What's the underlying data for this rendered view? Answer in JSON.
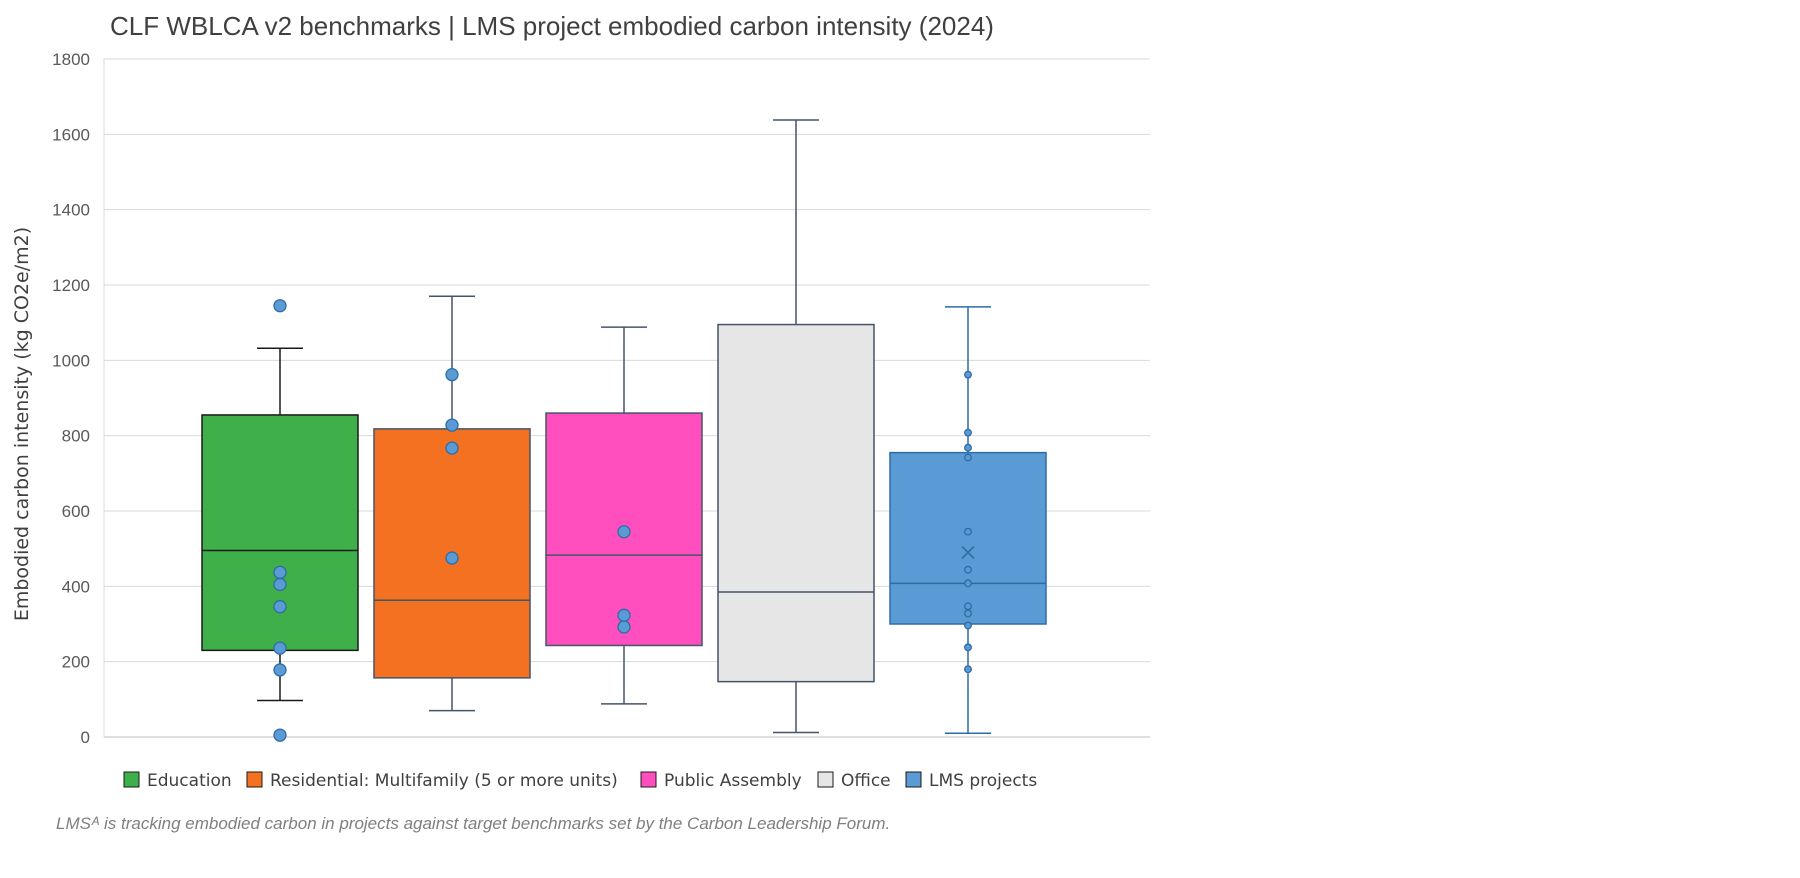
{
  "chart_data": {
    "type": "boxplot",
    "title": "CLF WBLCA v2 benchmarks | LMS project embodied carbon intensity (2024)",
    "ylabel": "Embodied carbon intensity (kg CO2e/m2)",
    "xlabel": "",
    "ylim": [
      0,
      1800
    ],
    "yticks": [
      0,
      200,
      400,
      600,
      800,
      1000,
      1200,
      1400,
      1600,
      1800
    ],
    "grid": true,
    "legend_position": "bottom",
    "caption": "LMSᴬ is tracking embodied carbon in projects against target benchmarks set by the Carbon Leadership Forum.",
    "series": [
      {
        "name": "Education",
        "color": "#3faf49",
        "stroke": "#1a1a1a",
        "whisker_low": 97,
        "q1": 230,
        "median": 495,
        "q3": 855,
        "whisker_high": 1032,
        "points": [
          1145,
          437,
          405,
          346,
          236,
          178,
          5
        ]
      },
      {
        "name": "Residential: Multifamily (5 or more units)",
        "color": "#f37121",
        "stroke": "#44546a",
        "whisker_low": 70,
        "q1": 157,
        "median": 363,
        "q3": 818,
        "whisker_high": 1170,
        "points": [
          962,
          828,
          767,
          475
        ]
      },
      {
        "name": "Public Assembly",
        "color": "#ff4fbe",
        "stroke": "#44546a",
        "whisker_low": 88,
        "q1": 243,
        "median": 483,
        "q3": 860,
        "whisker_high": 1088,
        "points": [
          545,
          323,
          292
        ]
      },
      {
        "name": "Office",
        "color": "#e7e6e6",
        "stroke": "#44546a",
        "whisker_low": 12,
        "q1": 147,
        "median": 385,
        "q3": 1095,
        "whisker_high": 1638,
        "points": []
      },
      {
        "name": "LMS projects",
        "color": "#5b9bd5",
        "stroke": "#2e6ca4",
        "whisker_low": 10,
        "q1": 300,
        "median": 408,
        "q3": 755,
        "whisker_high": 1142,
        "mean": 490,
        "points": [
          962,
          808,
          768,
          742,
          545,
          444,
          408,
          347,
          328,
          296,
          238,
          180
        ]
      }
    ]
  }
}
